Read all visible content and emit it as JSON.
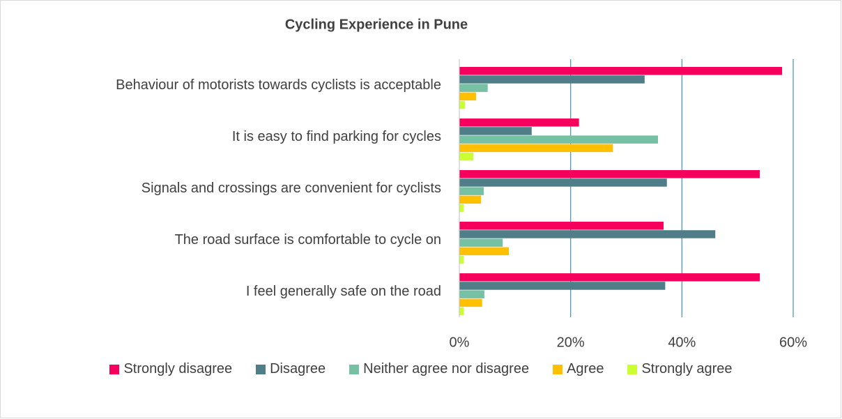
{
  "chart_data": {
    "type": "bar",
    "orientation": "horizontal",
    "title": "Cycling Experience in Pune",
    "categories": [
      "Behaviour of motorists towards cyclists is acceptable",
      "It is easy to find parking for cycles",
      "Signals and crossings are convenient for cyclists",
      "The road surface is comfortable to cycle on",
      "I feel generally safe on the road"
    ],
    "series": [
      {
        "name": "Strongly disagree",
        "color": "#f5005c",
        "values": [
          58,
          21.5,
          54,
          36.7,
          54
        ]
      },
      {
        "name": "Disagree",
        "color": "#4f7e88",
        "values": [
          33.3,
          13,
          37.3,
          46,
          37
        ]
      },
      {
        "name": "Neither agree nor disagree",
        "color": "#76c1a3",
        "values": [
          5.1,
          35.7,
          4.4,
          7.8,
          4.5
        ]
      },
      {
        "name": "Agree",
        "color": "#ffc000",
        "values": [
          3,
          27.6,
          3.9,
          8.9,
          4.1
        ]
      },
      {
        "name": "Strongly agree",
        "color": "#ccff33",
        "values": [
          1,
          2.5,
          0.8,
          0.8,
          0.8
        ]
      }
    ],
    "xlim": [
      0,
      60
    ],
    "xticks": [
      {
        "value": 0,
        "label": "0%"
      },
      {
        "value": 20,
        "label": "20%"
      },
      {
        "value": 40,
        "label": "40%"
      },
      {
        "value": 60,
        "label": "60%"
      }
    ],
    "grid": true,
    "legend": "bottom"
  }
}
